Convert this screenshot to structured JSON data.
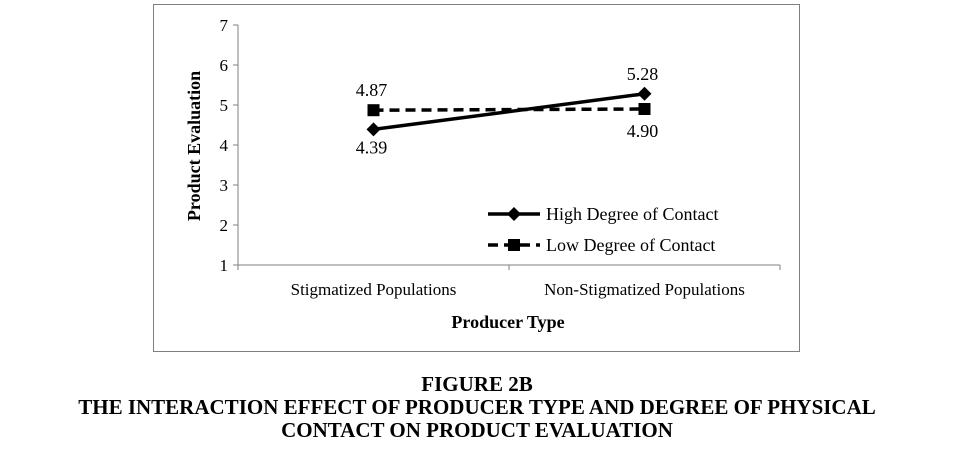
{
  "chart_data": {
    "type": "line",
    "xlabel": "Producer Type",
    "ylabel": "Product Evaluation",
    "categories": [
      "Stigmatized Populations",
      "Non-Stigmatized Populations"
    ],
    "ylim": [
      1,
      7
    ],
    "yticks": [
      "1",
      "2",
      "3",
      "4",
      "5",
      "6",
      "7"
    ],
    "grid": false,
    "legend_position": "bottom-right",
    "series": [
      {
        "name": "High Degree of Contact",
        "values": [
          4.39,
          5.28
        ],
        "data_labels": [
          "4.39",
          "5.28"
        ],
        "line_style": "solid",
        "marker": "diamond",
        "color": "#000000"
      },
      {
        "name": "Low Degree of Contact",
        "values": [
          4.87,
          4.9
        ],
        "data_labels": [
          "4.87",
          "4.90"
        ],
        "line_style": "dashed",
        "marker": "square",
        "color": "#000000"
      }
    ]
  },
  "figure": {
    "label": "FIGURE 2B",
    "caption_line1": "THE INTERACTION EFFECT OF PRODUCER TYPE AND DEGREE OF PHYSICAL",
    "caption_line2": "CONTACT ON PRODUCT EVALUATION"
  }
}
